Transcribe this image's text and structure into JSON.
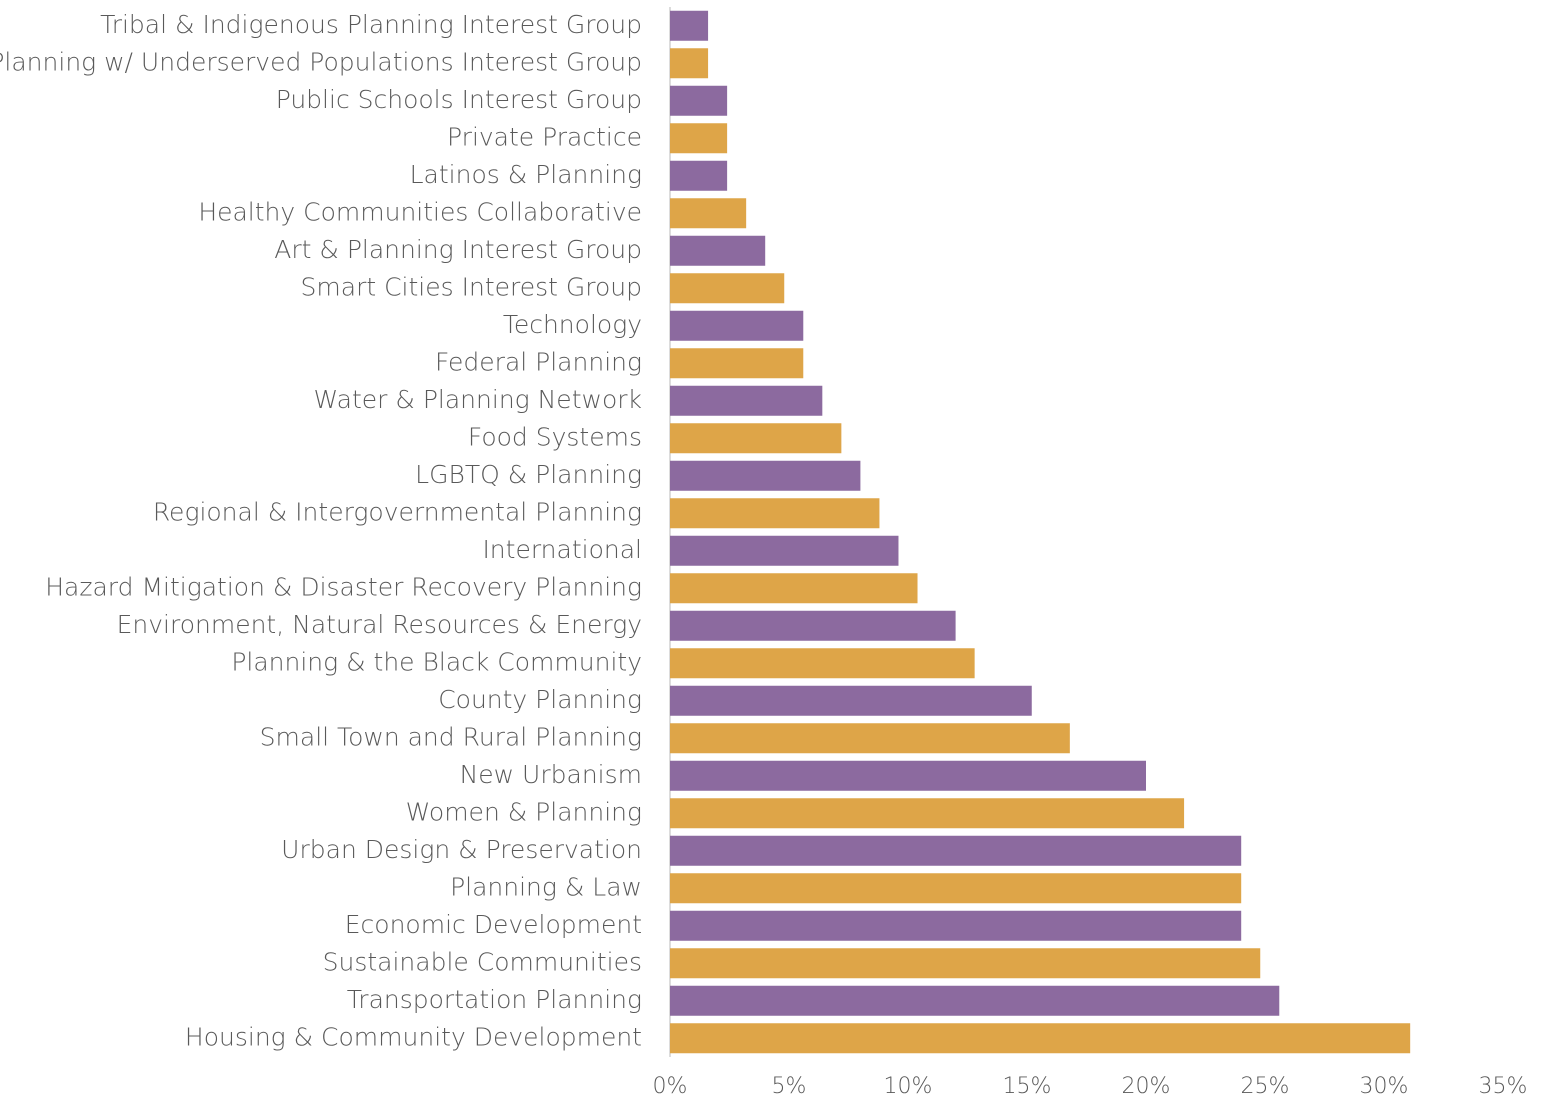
{
  "chart_data": {
    "type": "barh",
    "categories": [
      "Tribal & Indigenous Planning Interest Group",
      "Planning w/ Underserved Populations Interest Group",
      "Public Schools Interest Group",
      "Private Practice",
      "Latinos & Planning",
      "Healthy Communities Collaborative",
      "Art & Planning Interest Group",
      "Smart Cities Interest Group",
      "Technology",
      "Federal Planning",
      "Water & Planning Network",
      "Food Systems",
      "LGBTQ & Planning",
      "Regional & Intergovernmental Planning",
      "International",
      "Hazard Mitigation & Disaster Recovery Planning",
      "Environment, Natural Resources & Energy",
      "Planning & the Black Community",
      "County Planning",
      "Small Town and Rural Planning",
      "New Urbanism",
      "Women & Planning",
      "Urban Design & Preservation",
      "Planning & Law",
      "Economic Development",
      "Sustainable Communities",
      "Transportation Planning",
      "Housing & Community Development"
    ],
    "values": [
      1.6,
      1.6,
      2.4,
      2.4,
      2.4,
      3.2,
      4.0,
      4.8,
      5.6,
      5.6,
      6.4,
      7.2,
      8.0,
      8.8,
      9.6,
      10.4,
      12.0,
      12.8,
      15.2,
      16.8,
      20.0,
      21.6,
      24.0,
      24.0,
      24.0,
      24.8,
      25.6,
      31.1
    ],
    "color_cycle": [
      "#8c6a9f",
      "#dea548"
    ],
    "xlim": [
      0,
      35
    ],
    "xticks": [
      {
        "value": 0,
        "label": "0%"
      },
      {
        "value": 5,
        "label": "5%"
      },
      {
        "value": 10,
        "label": "10%"
      },
      {
        "value": 15,
        "label": "15%"
      },
      {
        "value": 20,
        "label": "20%"
      },
      {
        "value": 25,
        "label": "25%"
      },
      {
        "value": 30,
        "label": "30%"
      },
      {
        "value": 35,
        "label": "35%"
      }
    ],
    "grid": false
  }
}
